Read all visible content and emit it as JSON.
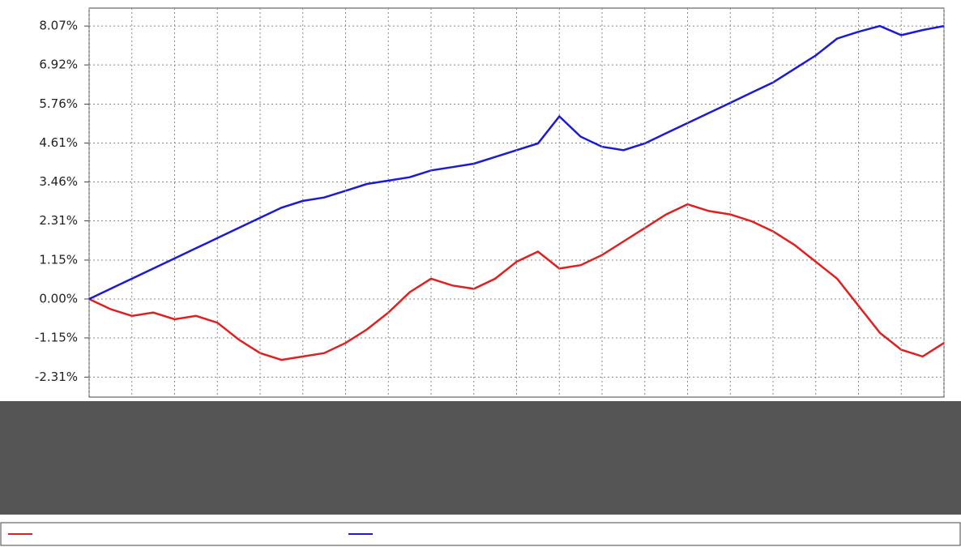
{
  "chart_data": {
    "type": "line",
    "ylim": [
      -2.9,
      8.6
    ],
    "yticks": [
      {
        "value": 8.07,
        "label": "8.07%"
      },
      {
        "value": 6.92,
        "label": "6.92%"
      },
      {
        "value": 5.76,
        "label": "5.76%"
      },
      {
        "value": 4.61,
        "label": "4.61%"
      },
      {
        "value": 3.46,
        "label": "3.46%"
      },
      {
        "value": 2.31,
        "label": "2.31%"
      },
      {
        "value": 1.15,
        "label": "1.15%"
      },
      {
        "value": 0,
        "label": "0.00%"
      },
      {
        "value": -1.15,
        "label": "-1.15%"
      },
      {
        "value": -2.31,
        "label": "-2.31%"
      }
    ],
    "grid": true,
    "series": [
      {
        "color": "#e02020",
        "values": [
          0,
          -0.3,
          -0.5,
          -0.4,
          -0.6,
          -0.5,
          -0.7,
          -1.2,
          -1.6,
          -1.8,
          -1.7,
          -1.6,
          -1.3,
          -0.9,
          -0.4,
          0.2,
          0.6,
          0.4,
          0.3,
          0.6,
          1.1,
          1.4,
          0.9,
          1.0,
          1.3,
          1.7,
          2.1,
          2.5,
          2.8,
          2.6,
          2.5,
          2.3,
          2.0,
          1.6,
          1.1,
          0.6,
          -0.2,
          -1.0,
          -1.5,
          -1.7,
          -1.3
        ]
      },
      {
        "color": "#1a1ad8",
        "values": [
          0,
          0.3,
          0.6,
          0.9,
          1.2,
          1.5,
          1.8,
          2.1,
          2.4,
          2.7,
          2.9,
          3.0,
          3.2,
          3.4,
          3.5,
          3.6,
          3.8,
          3.9,
          4.0,
          4.2,
          4.4,
          4.6,
          5.4,
          4.8,
          4.5,
          4.4,
          4.6,
          4.9,
          5.2,
          5.5,
          5.8,
          6.1,
          6.4,
          6.8,
          7.2,
          7.7,
          7.9,
          8.07,
          7.8,
          7.95,
          8.07
        ]
      }
    ]
  }
}
